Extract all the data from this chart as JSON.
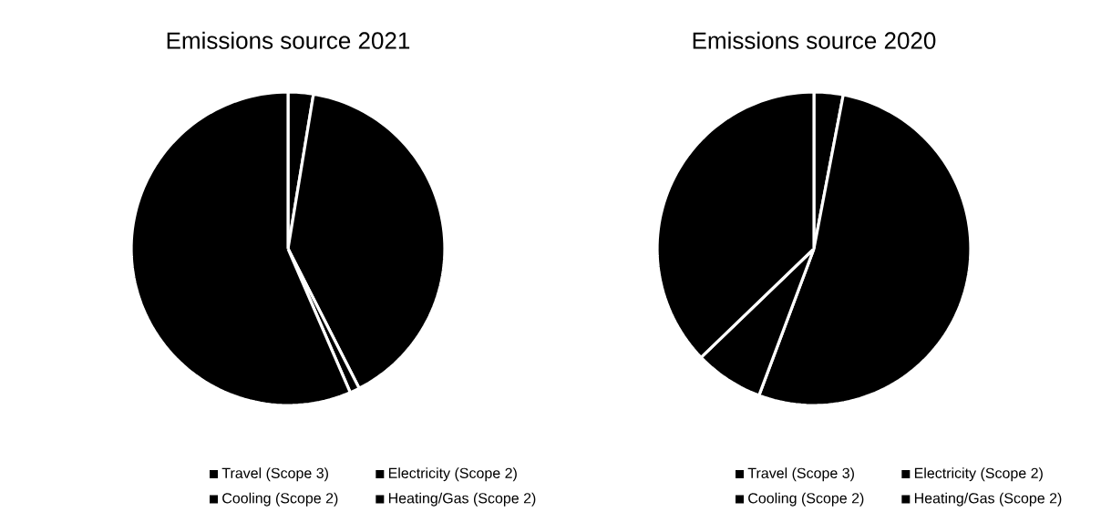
{
  "chart_data": [
    {
      "type": "pie",
      "title": "Emissions source 2021",
      "categories": [
        "Travel (Scope 3)",
        "Electricity (Scope 2)",
        "Cooling (Scope 2)",
        "Heating/Gas (Scope 2)"
      ],
      "values": [
        2.6,
        39.9,
        1.0,
        56.5
      ],
      "colors": [
        "#000000",
        "#000000",
        "#000000",
        "#000000"
      ],
      "legend": "bottom"
    },
    {
      "type": "pie",
      "title": "Emissions source 2020",
      "categories": [
        "Travel (Scope 3)",
        "Electricity (Scope 2)",
        "Cooling (Scope 2)",
        "Heating/Gas (Scope 2)"
      ],
      "values": [
        3.0,
        52.7,
        7.1,
        37.2
      ],
      "colors": [
        "#000000",
        "#000000",
        "#000000",
        "#000000"
      ],
      "legend": "bottom"
    }
  ]
}
